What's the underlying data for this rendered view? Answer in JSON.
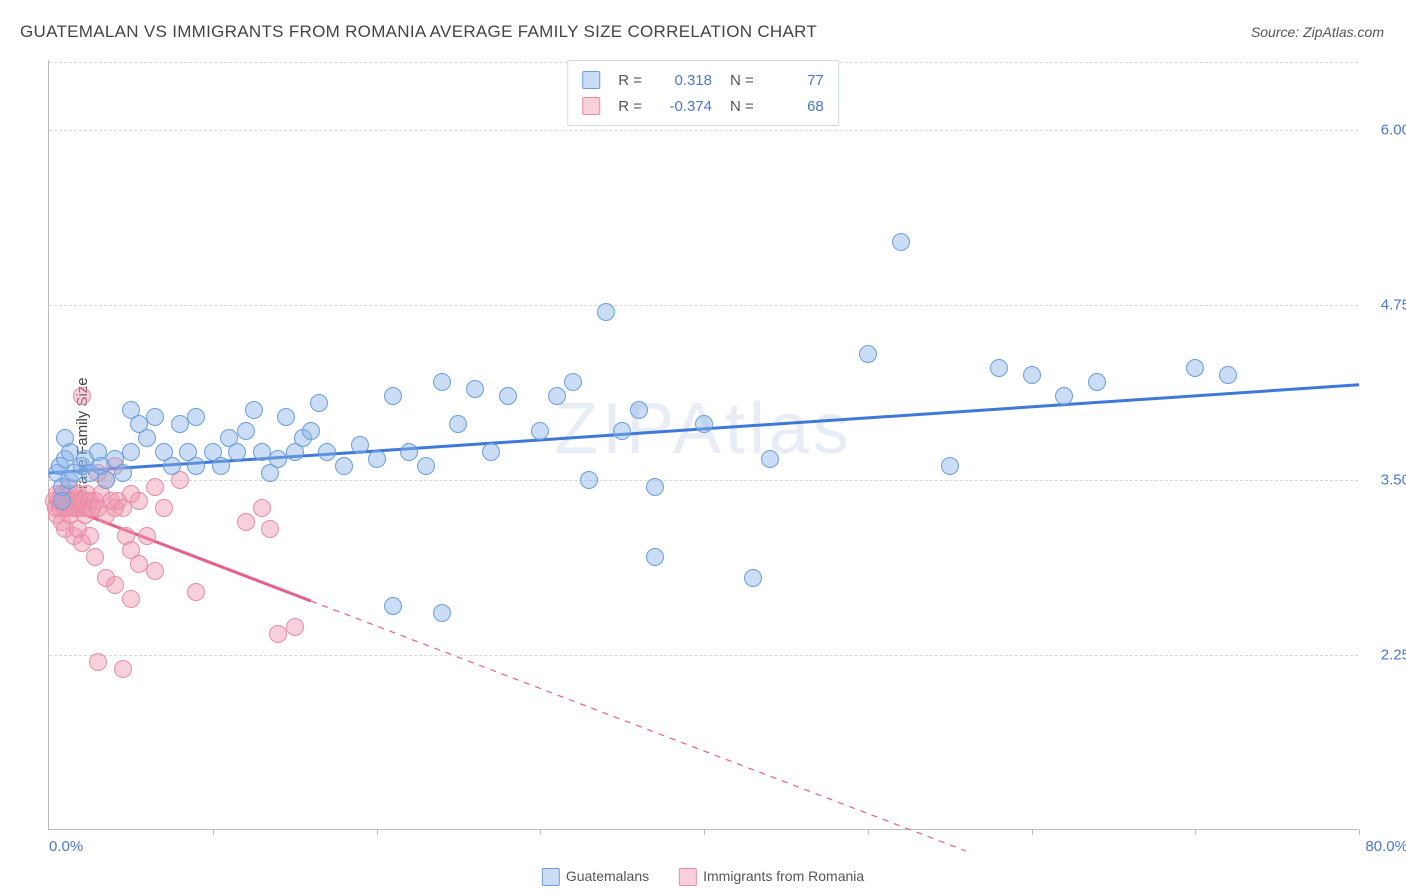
{
  "title": "GUATEMALAN VS IMMIGRANTS FROM ROMANIA AVERAGE FAMILY SIZE CORRELATION CHART",
  "source": "Source: ZipAtlas.com",
  "watermark": "ZIPAtlas",
  "y_axis_label": "Average Family Size",
  "x_min_label": "0.0%",
  "x_max_label": "80.0%",
  "chart": {
    "type": "scatter",
    "xlim": [
      0,
      80
    ],
    "ylim": [
      1.0,
      6.5
    ],
    "yticks": [
      2.25,
      3.5,
      4.75,
      6.0
    ],
    "ytick_labels": [
      "2.25",
      "3.50",
      "4.75",
      "6.00"
    ],
    "xticks": [
      0,
      10,
      20,
      30,
      40,
      50,
      60,
      70,
      80
    ],
    "background_color": "#ffffff",
    "grid_color": "#d8d8d8",
    "axis_color": "#bbbbbb",
    "tick_label_color": "#4a76d4",
    "marker_radius": 9,
    "marker_stroke_width": 1.2,
    "trend_line_width": 3
  },
  "series": {
    "guatemalans": {
      "label": "Guatemalans",
      "fill": "rgba(138,180,232,0.45)",
      "stroke": "#6a9de0",
      "trend_color": "#3f78d8",
      "R": "0.318",
      "N": "77",
      "trend": {
        "x1": 0,
        "y1": 3.55,
        "x2": 80,
        "y2": 4.18,
        "solid_until_x": 80
      },
      "points": [
        [
          0.5,
          3.55
        ],
        [
          0.7,
          3.6
        ],
        [
          0.8,
          3.45
        ],
        [
          1.0,
          3.65
        ],
        [
          1.2,
          3.5
        ],
        [
          1.3,
          3.7
        ],
        [
          1.5,
          3.55
        ],
        [
          1.0,
          3.8
        ],
        [
          0.8,
          3.35
        ],
        [
          2,
          3.6
        ],
        [
          2.2,
          3.65
        ],
        [
          2.5,
          3.55
        ],
        [
          3,
          3.7
        ],
        [
          3.2,
          3.6
        ],
        [
          3.5,
          3.5
        ],
        [
          4,
          3.65
        ],
        [
          4.5,
          3.55
        ],
        [
          5,
          3.7
        ],
        [
          5,
          4.0
        ],
        [
          5.5,
          3.9
        ],
        [
          6,
          3.8
        ],
        [
          6.5,
          3.95
        ],
        [
          7,
          3.7
        ],
        [
          7.5,
          3.6
        ],
        [
          8,
          3.9
        ],
        [
          8.5,
          3.7
        ],
        [
          9,
          3.6
        ],
        [
          9,
          3.95
        ],
        [
          10,
          3.7
        ],
        [
          10.5,
          3.6
        ],
        [
          11,
          3.8
        ],
        [
          11.5,
          3.7
        ],
        [
          12,
          3.85
        ],
        [
          12.5,
          4.0
        ],
        [
          13,
          3.7
        ],
        [
          13.5,
          3.55
        ],
        [
          14,
          3.65
        ],
        [
          14.5,
          3.95
        ],
        [
          15,
          3.7
        ],
        [
          15.5,
          3.8
        ],
        [
          16,
          3.85
        ],
        [
          16.5,
          4.05
        ],
        [
          17,
          3.7
        ],
        [
          18,
          3.6
        ],
        [
          19,
          3.75
        ],
        [
          20,
          3.65
        ],
        [
          21,
          4.1
        ],
        [
          21,
          2.6
        ],
        [
          22,
          3.7
        ],
        [
          23,
          3.6
        ],
        [
          24,
          4.2
        ],
        [
          24,
          2.55
        ],
        [
          25,
          3.9
        ],
        [
          26,
          4.15
        ],
        [
          27,
          3.7
        ],
        [
          28,
          4.1
        ],
        [
          30,
          3.85
        ],
        [
          31,
          4.1
        ],
        [
          32,
          4.2
        ],
        [
          33,
          3.5
        ],
        [
          34,
          4.7
        ],
        [
          35,
          3.85
        ],
        [
          36,
          4.0
        ],
        [
          37,
          3.45
        ],
        [
          37,
          2.95
        ],
        [
          40,
          3.9
        ],
        [
          43,
          2.8
        ],
        [
          44,
          3.65
        ],
        [
          50,
          4.4
        ],
        [
          52,
          5.2
        ],
        [
          55,
          3.6
        ],
        [
          58,
          4.3
        ],
        [
          60,
          4.25
        ],
        [
          62,
          4.1
        ],
        [
          64,
          4.2
        ],
        [
          70,
          4.3
        ],
        [
          72,
          4.25
        ]
      ]
    },
    "romania": {
      "label": "Immigrants from Romania",
      "fill": "rgba(240,150,175,0.45)",
      "stroke": "#e88ba5",
      "trend_color": "#e85f88",
      "R": "-0.374",
      "N": "68",
      "trend": {
        "x1": 0,
        "y1": 3.35,
        "x2": 56,
        "y2": 0.85,
        "solid_until_x": 16
      },
      "points": [
        [
          0.3,
          3.35
        ],
        [
          0.4,
          3.3
        ],
        [
          0.5,
          3.4
        ],
        [
          0.5,
          3.25
        ],
        [
          0.6,
          3.35
        ],
        [
          0.7,
          3.3
        ],
        [
          0.8,
          3.4
        ],
        [
          0.8,
          3.2
        ],
        [
          0.9,
          3.35
        ],
        [
          1.0,
          3.3
        ],
        [
          1.0,
          3.4
        ],
        [
          1.0,
          3.15
        ],
        [
          1.1,
          3.35
        ],
        [
          1.2,
          3.3
        ],
        [
          1.2,
          3.45
        ],
        [
          1.3,
          3.25
        ],
        [
          1.3,
          3.4
        ],
        [
          1.4,
          3.35
        ],
        [
          1.5,
          3.3
        ],
        [
          1.5,
          3.1
        ],
        [
          1.6,
          3.35
        ],
        [
          1.7,
          3.3
        ],
        [
          1.8,
          3.4
        ],
        [
          1.8,
          3.15
        ],
        [
          1.9,
          3.35
        ],
        [
          2.0,
          3.3
        ],
        [
          2.0,
          3.05
        ],
        [
          2.1,
          3.35
        ],
        [
          2.2,
          3.25
        ],
        [
          2.3,
          3.4
        ],
        [
          2.4,
          3.3
        ],
        [
          2.5,
          3.1
        ],
        [
          2.5,
          3.35
        ],
        [
          2.6,
          3.3
        ],
        [
          2.8,
          2.95
        ],
        [
          2.8,
          3.35
        ],
        [
          3.0,
          3.3
        ],
        [
          3.0,
          3.55
        ],
        [
          3.2,
          3.4
        ],
        [
          3.5,
          3.25
        ],
        [
          3.5,
          2.8
        ],
        [
          3.5,
          3.5
        ],
        [
          3.8,
          3.35
        ],
        [
          4.0,
          3.3
        ],
        [
          4.0,
          3.6
        ],
        [
          4.0,
          2.75
        ],
        [
          4.2,
          3.35
        ],
        [
          4.5,
          3.3
        ],
        [
          4.7,
          3.1
        ],
        [
          5.0,
          3.4
        ],
        [
          5.0,
          3.0
        ],
        [
          5.5,
          2.9
        ],
        [
          5.5,
          3.35
        ],
        [
          6.0,
          3.1
        ],
        [
          6.5,
          3.45
        ],
        [
          6.5,
          2.85
        ],
        [
          7.0,
          3.3
        ],
        [
          2.0,
          4.1
        ],
        [
          3.0,
          2.2
        ],
        [
          4.5,
          2.15
        ],
        [
          5.0,
          2.65
        ],
        [
          9.0,
          2.7
        ],
        [
          12.0,
          3.2
        ],
        [
          13.0,
          3.3
        ],
        [
          13.5,
          3.15
        ],
        [
          14.0,
          2.4
        ],
        [
          15.0,
          2.45
        ],
        [
          8.0,
          3.5
        ]
      ]
    }
  },
  "legend_top": {
    "r_label": "R =",
    "n_label": "N ="
  }
}
